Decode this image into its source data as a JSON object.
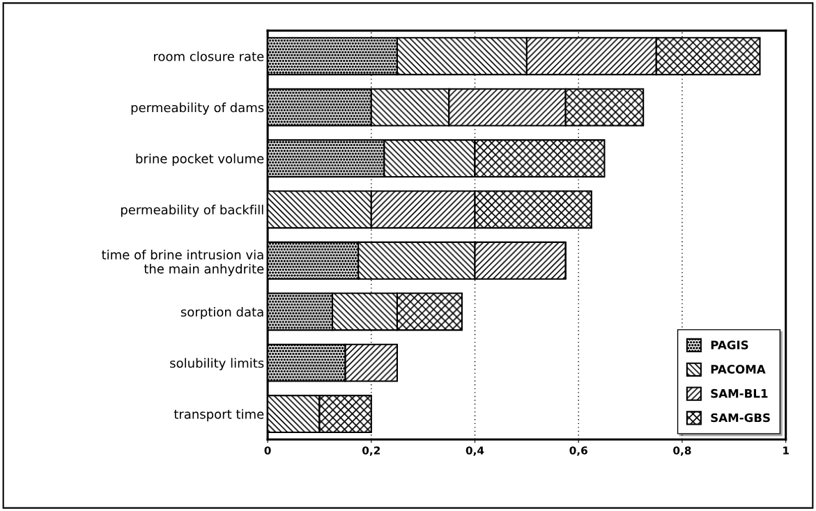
{
  "chart_data": {
    "type": "bar",
    "orientation": "horizontal",
    "stacked": true,
    "categories": [
      "room closure rate",
      "permeability of dams",
      "brine pocket volume",
      "permeability of backfill",
      "time of brine intrusion via\nthe main anhydrite",
      "sorption data",
      "solubility limits",
      "transport time"
    ],
    "series": [
      {
        "name": "PAGIS",
        "color": "#000000",
        "values": [
          0.25,
          0.2,
          0.225,
          0,
          0.175,
          0.125,
          0.15,
          0
        ]
      },
      {
        "name": "PACOMA",
        "color": "#000000",
        "values": [
          0.25,
          0.15,
          0.175,
          0.2,
          0.225,
          0.125,
          0,
          0.1
        ]
      },
      {
        "name": "SAM-BL1",
        "color": "#000000",
        "values": [
          0.25,
          0.225,
          0,
          0.2,
          0.175,
          0,
          0.1,
          0
        ]
      },
      {
        "name": "SAM-GBS",
        "color": "#000000",
        "values": [
          0.2,
          0.15,
          0.25,
          0.225,
          0,
          0.125,
          0,
          0.1
        ]
      }
    ],
    "xlim": [
      0,
      1
    ],
    "xticks": [
      {
        "value": 0,
        "label": "0"
      },
      {
        "value": 0.2,
        "label": "0,2"
      },
      {
        "value": 0.4,
        "label": "0,4"
      },
      {
        "value": 0.6,
        "label": "0,6"
      },
      {
        "value": 0.8,
        "label": "0,8"
      },
      {
        "value": 1,
        "label": "1"
      }
    ],
    "grid": "x",
    "legend": "bottom right"
  }
}
